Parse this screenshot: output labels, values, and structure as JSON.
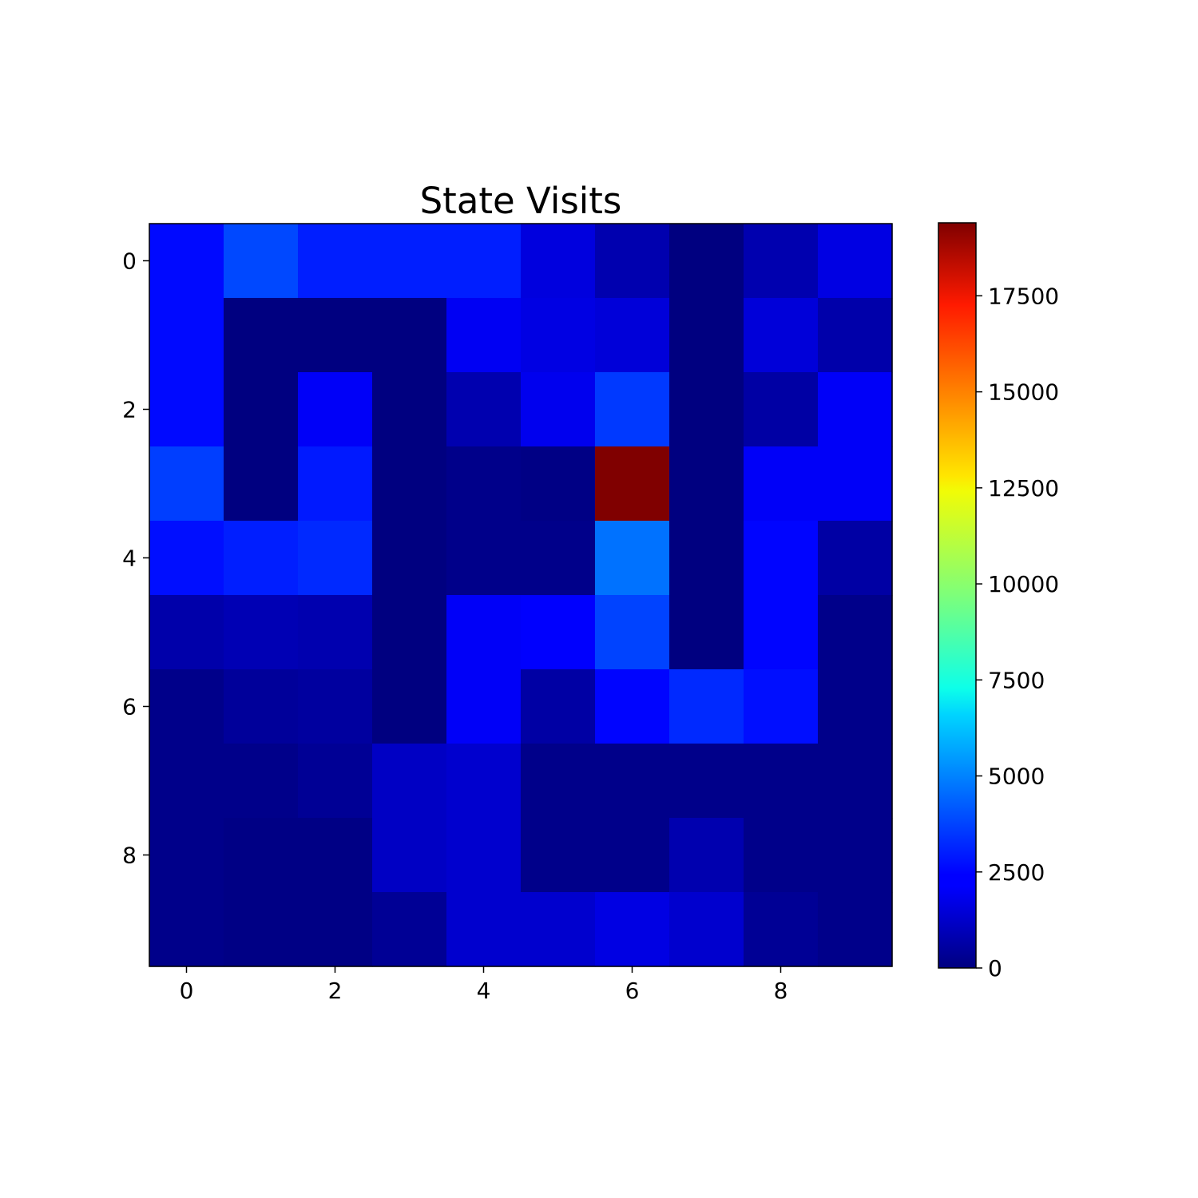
{
  "chart_data": {
    "type": "heatmap",
    "title": "State Visits",
    "xlabel": "",
    "ylabel": "",
    "x_ticks": [
      0,
      2,
      4,
      6,
      8
    ],
    "y_ticks": [
      0,
      2,
      4,
      6,
      8
    ],
    "colormap": "jet",
    "colorbar": {
      "min": 0,
      "max": 19400,
      "ticks": [
        0,
        2500,
        5000,
        7500,
        10000,
        12500,
        15000,
        17500
      ]
    },
    "grid": false,
    "values": [
      [
        2600,
        3800,
        3000,
        3000,
        3000,
        1800,
        900,
        0,
        900,
        1900
      ],
      [
        2600,
        0,
        0,
        0,
        2200,
        1900,
        1700,
        0,
        1700,
        800
      ],
      [
        2600,
        0,
        2300,
        0,
        900,
        2100,
        3500,
        0,
        700,
        2300
      ],
      [
        3600,
        0,
        2900,
        0,
        200,
        100,
        19400,
        0,
        2300,
        2300
      ],
      [
        2700,
        3000,
        3200,
        0,
        200,
        200,
        4600,
        0,
        2500,
        700
      ],
      [
        800,
        1000,
        900,
        0,
        2300,
        2400,
        3700,
        0,
        2500,
        200
      ],
      [
        200,
        500,
        600,
        0,
        2300,
        700,
        2500,
        3200,
        2700,
        200
      ],
      [
        200,
        200,
        400,
        1300,
        1500,
        200,
        200,
        200,
        200,
        200
      ],
      [
        200,
        100,
        100,
        1300,
        1500,
        200,
        200,
        900,
        200,
        200
      ],
      [
        200,
        100,
        100,
        400,
        1500,
        1500,
        1900,
        1500,
        400,
        200
      ]
    ]
  }
}
